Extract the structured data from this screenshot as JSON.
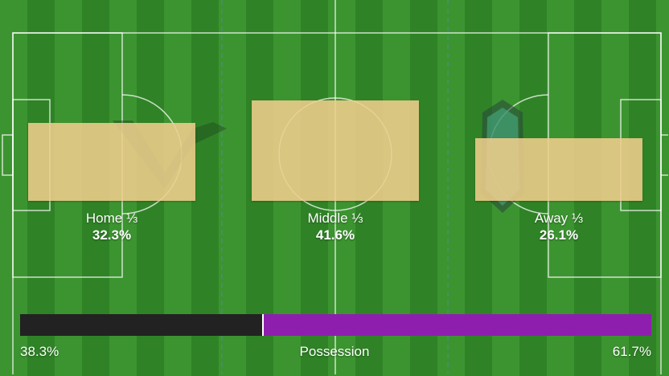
{
  "thirds": [
    {
      "label": "Home ⅓",
      "value": "32.3%",
      "percent": 32.3
    },
    {
      "label": "Middle ⅓",
      "value": "41.6%",
      "percent": 41.6
    },
    {
      "label": "Away ⅓",
      "value": "26.1%",
      "percent": 26.1
    }
  ],
  "possession": {
    "label": "Possession",
    "home_value": "38.3%",
    "away_value": "61.7%",
    "home_percent": 38.3,
    "home_color": "#222222",
    "away_color": "#8e1fae"
  },
  "bar_color": "#eecd8c",
  "icons": [
    "home-team-crest",
    "away-team-crest"
  ]
}
